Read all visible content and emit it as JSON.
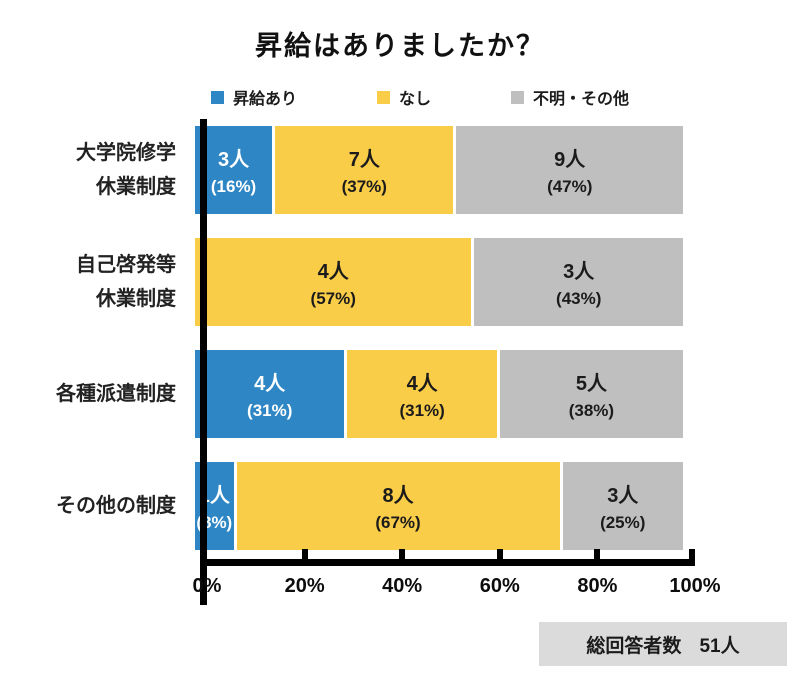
{
  "title": "昇給はありましたか？",
  "chart_data": {
    "type": "bar",
    "orientation": "horizontal_stacked",
    "title": "昇給はありましたか？",
    "unit": "人",
    "categories": [
      "大学院修学休業制度",
      "自己啓発等休業制度",
      "各種派遣制度",
      "その他の制度"
    ],
    "category_label_lines": [
      [
        "大学院修学",
        "休業制度"
      ],
      [
        "自己啓発等",
        "休業制度"
      ],
      [
        "各種派遣制度"
      ],
      [
        "その他の制度"
      ]
    ],
    "series": [
      {
        "name": "昇給あり",
        "color": "#2E86C4",
        "text_color": "#FFFFFF",
        "values": [
          3,
          0,
          4,
          1
        ],
        "percents": [
          16,
          null,
          31,
          8
        ]
      },
      {
        "name": "なし",
        "color": "#FACD49",
        "text_color": "#1B1B1B",
        "values": [
          7,
          4,
          4,
          8
        ],
        "percents": [
          37,
          57,
          31,
          67
        ]
      },
      {
        "name": "不明・その他",
        "color": "#BFBFBF",
        "text_color": "#1B1B1B",
        "values": [
          9,
          3,
          5,
          3
        ],
        "percents": [
          47,
          43,
          38,
          25
        ]
      }
    ],
    "x_ticks": [
      "0%",
      "20%",
      "40%",
      "60%",
      "80%",
      "100%"
    ],
    "xlim": [
      0,
      100
    ],
    "legend_position": "top",
    "grid": false
  },
  "footer": {
    "total_label": "総回答者数",
    "total_value": "51人"
  }
}
